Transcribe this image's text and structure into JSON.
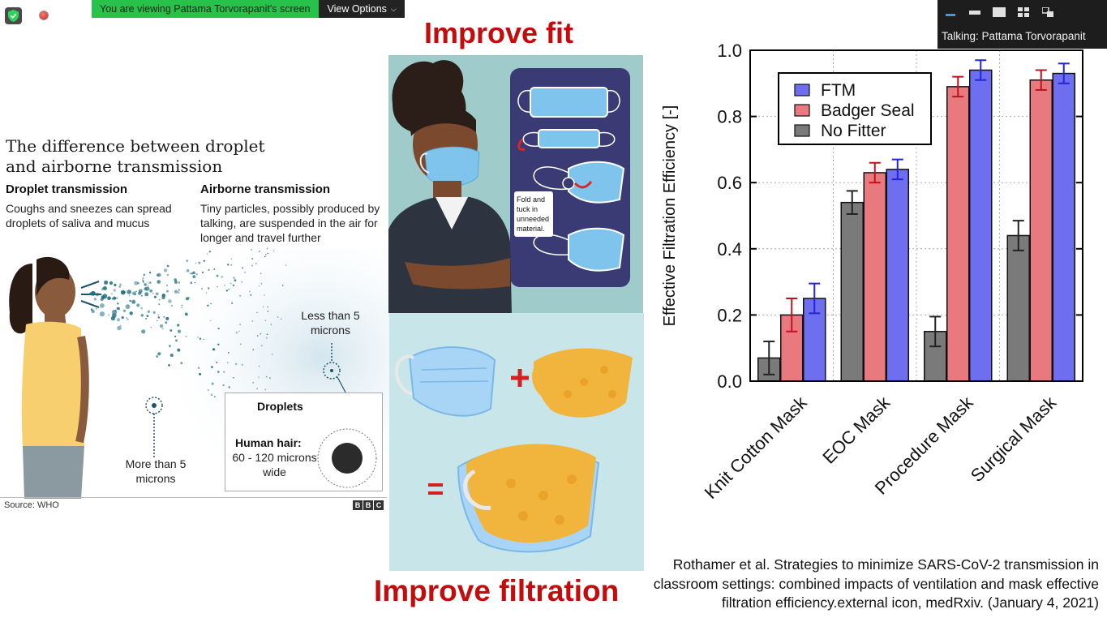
{
  "zoom": {
    "share_banner": "You are viewing Pattama Torvorapanit's screen",
    "view_options": "View Options",
    "talking": "Talking: Pattama Torvorapanit"
  },
  "headings": {
    "fit": "Improve fit",
    "filtration": "Improve filtration"
  },
  "bbc": {
    "title": "The difference between droplet and airborne transmission",
    "droplet_head": "Droplet transmission",
    "droplet_text": "Coughs and sneezes can spread droplets of saliva and mucus",
    "airborne_head": "Airborne transmission",
    "airborne_text": "Tiny particles, possibly produced by talking, are suspended in the air for longer and travel further",
    "less_than": "Less than 5 microns",
    "more_than": "More than 5 microns",
    "box_title": "Droplets",
    "human_hair": "Human hair:",
    "microns_wide": "60 - 120 microns wide",
    "source": "Source: WHO",
    "logo": [
      "B",
      "B",
      "C"
    ]
  },
  "fit_panel": {
    "fold_note": [
      "Fold and",
      "tuck in",
      "unneeded",
      "material."
    ]
  },
  "chart_data": {
    "type": "bar",
    "categories": [
      "Knit Cotton Mask",
      "EOC Mask",
      "Procedure Mask",
      "Surgical Mask"
    ],
    "series": [
      {
        "name": "No Fitter",
        "color": "#7a7a7a",
        "values": [
          0.07,
          0.54,
          0.15,
          0.44
        ],
        "errors": [
          0.05,
          0.035,
          0.045,
          0.045
        ]
      },
      {
        "name": "Badger Seal",
        "color": "#e8797f",
        "values": [
          0.2,
          0.63,
          0.89,
          0.91
        ],
        "errors": [
          0.05,
          0.03,
          0.03,
          0.03
        ]
      },
      {
        "name": "FTM",
        "color": "#6e6ef0",
        "values": [
          0.25,
          0.64,
          0.94,
          0.93
        ],
        "errors": [
          0.045,
          0.03,
          0.03,
          0.03
        ]
      }
    ],
    "legend_order": [
      "FTM",
      "Badger Seal",
      "No Fitter"
    ],
    "ylabel": "Effective Filtration Efficiency [-]",
    "ylim": [
      0,
      1.0
    ],
    "yticks": [
      "0.0",
      "0.2",
      "0.4",
      "0.6",
      "0.8",
      "1.0"
    ],
    "grid": true,
    "legend_position": "top-left"
  },
  "citation": "Rothamer et al. Strategies to minimize SARS-CoV-2 transmission in classroom settings: combined impacts of ventilation and mask effective filtration efficiency.external icon, medRxiv. (January 4, 2021)"
}
